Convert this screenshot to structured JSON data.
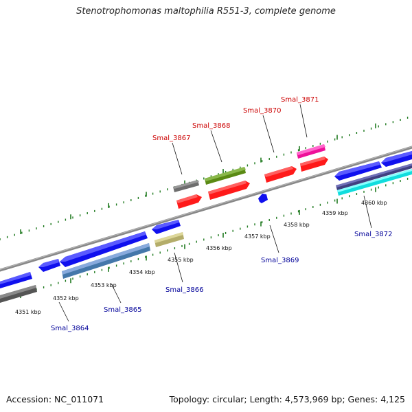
{
  "title": "Stenotrophomonas maltophilia R551-3, complete genome",
  "footer": {
    "accession": "Accession: NC_011071",
    "stats": "Topology: circular; Length: 4,573,969 bp; Genes: 4,125"
  },
  "colors": {
    "backbone": "#888888",
    "label_top": "#cc0000",
    "label_bottom": "#000099",
    "tick": "#1f7a1f"
  },
  "ticks": [
    "4351 kbp",
    "4352 kbp",
    "4353 kbp",
    "4354 kbp",
    "4355 kbp",
    "4356 kbp",
    "4357 kbp",
    "4358 kbp",
    "4359 kbp",
    "4360 kbp"
  ],
  "top_labels": [
    {
      "text": "Smal_3867"
    },
    {
      "text": "Smal_3868"
    },
    {
      "text": "Smal_3870"
    },
    {
      "text": "Smal_3871"
    }
  ],
  "bottom_labels": [
    {
      "text": "Smal_3864"
    },
    {
      "text": "Smal_3865"
    },
    {
      "text": "Smal_3866"
    },
    {
      "text": "Smal_3869"
    },
    {
      "text": "Smal_3872"
    }
  ]
}
